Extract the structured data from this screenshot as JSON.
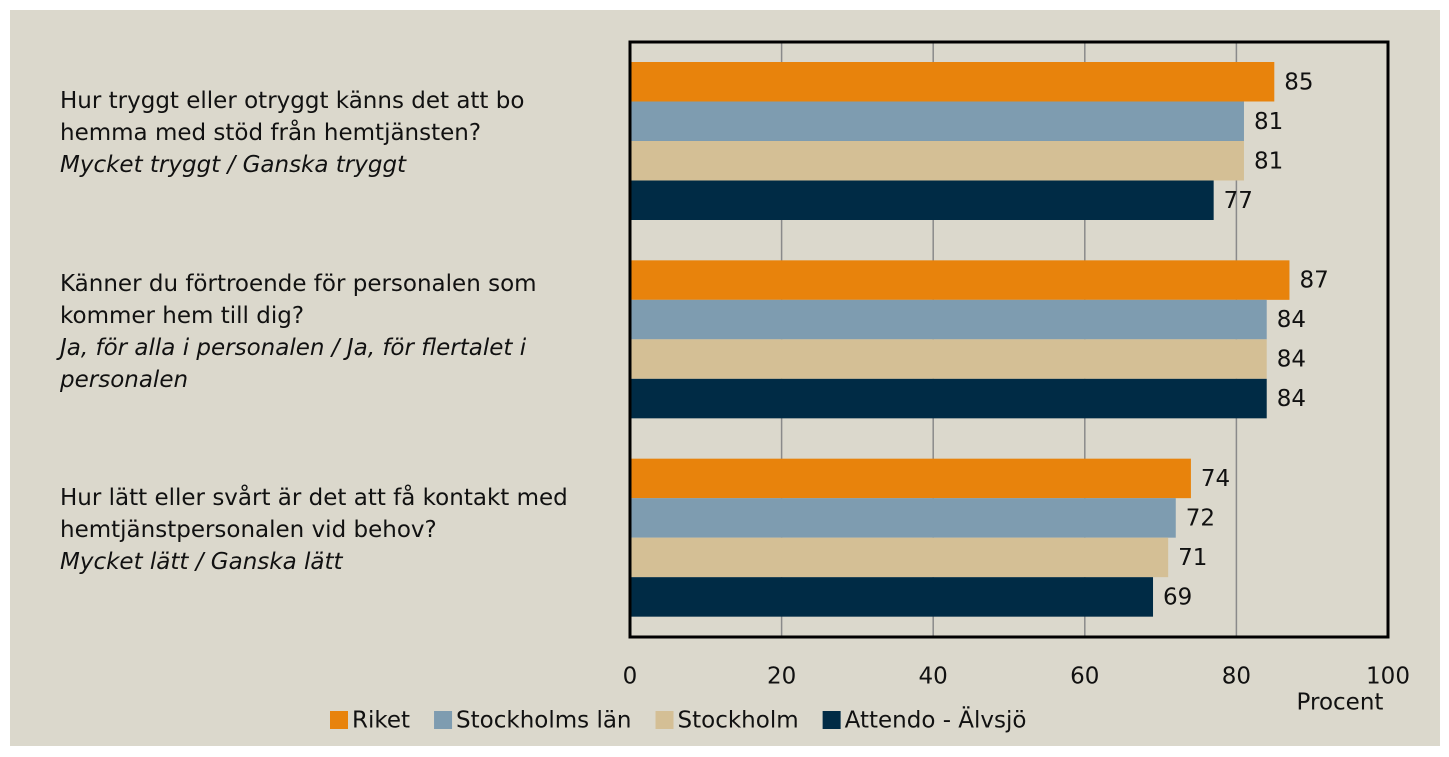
{
  "chart_data": {
    "type": "hbar",
    "categories": [
      {
        "question": "Hur tryggt eller otryggt känns det att bo hemma med stöd från hemtjänsten?",
        "answer": "Mycket tryggt / Ganska tryggt"
      },
      {
        "question": "Känner du förtroende för personalen som kommer hem till dig?",
        "answer": "Ja, för alla i personalen / Ja, för flertalet i personalen"
      },
      {
        "question": "Hur lätt eller svårt är det att få kontakt med hemtjänstpersonalen vid behov?",
        "answer": "Mycket lätt / Ganska lätt"
      }
    ],
    "series": [
      {
        "name": "Riket",
        "color": "#e8830c",
        "values": [
          85,
          87,
          74
        ]
      },
      {
        "name": "Stockholms län",
        "color": "#7e9cb0",
        "values": [
          81,
          84,
          72
        ]
      },
      {
        "name": "Stockholm",
        "color": "#d4bf95",
        "values": [
          81,
          84,
          71
        ]
      },
      {
        "name": "Attendo - Älvsjö",
        "color": "#002b45",
        "values": [
          77,
          84,
          69
        ]
      }
    ],
    "xlim": [
      0,
      100
    ],
    "xticks": [
      0,
      20,
      40,
      60,
      80,
      100
    ],
    "x_label": "Procent",
    "grid": true,
    "legend": "bottom"
  }
}
